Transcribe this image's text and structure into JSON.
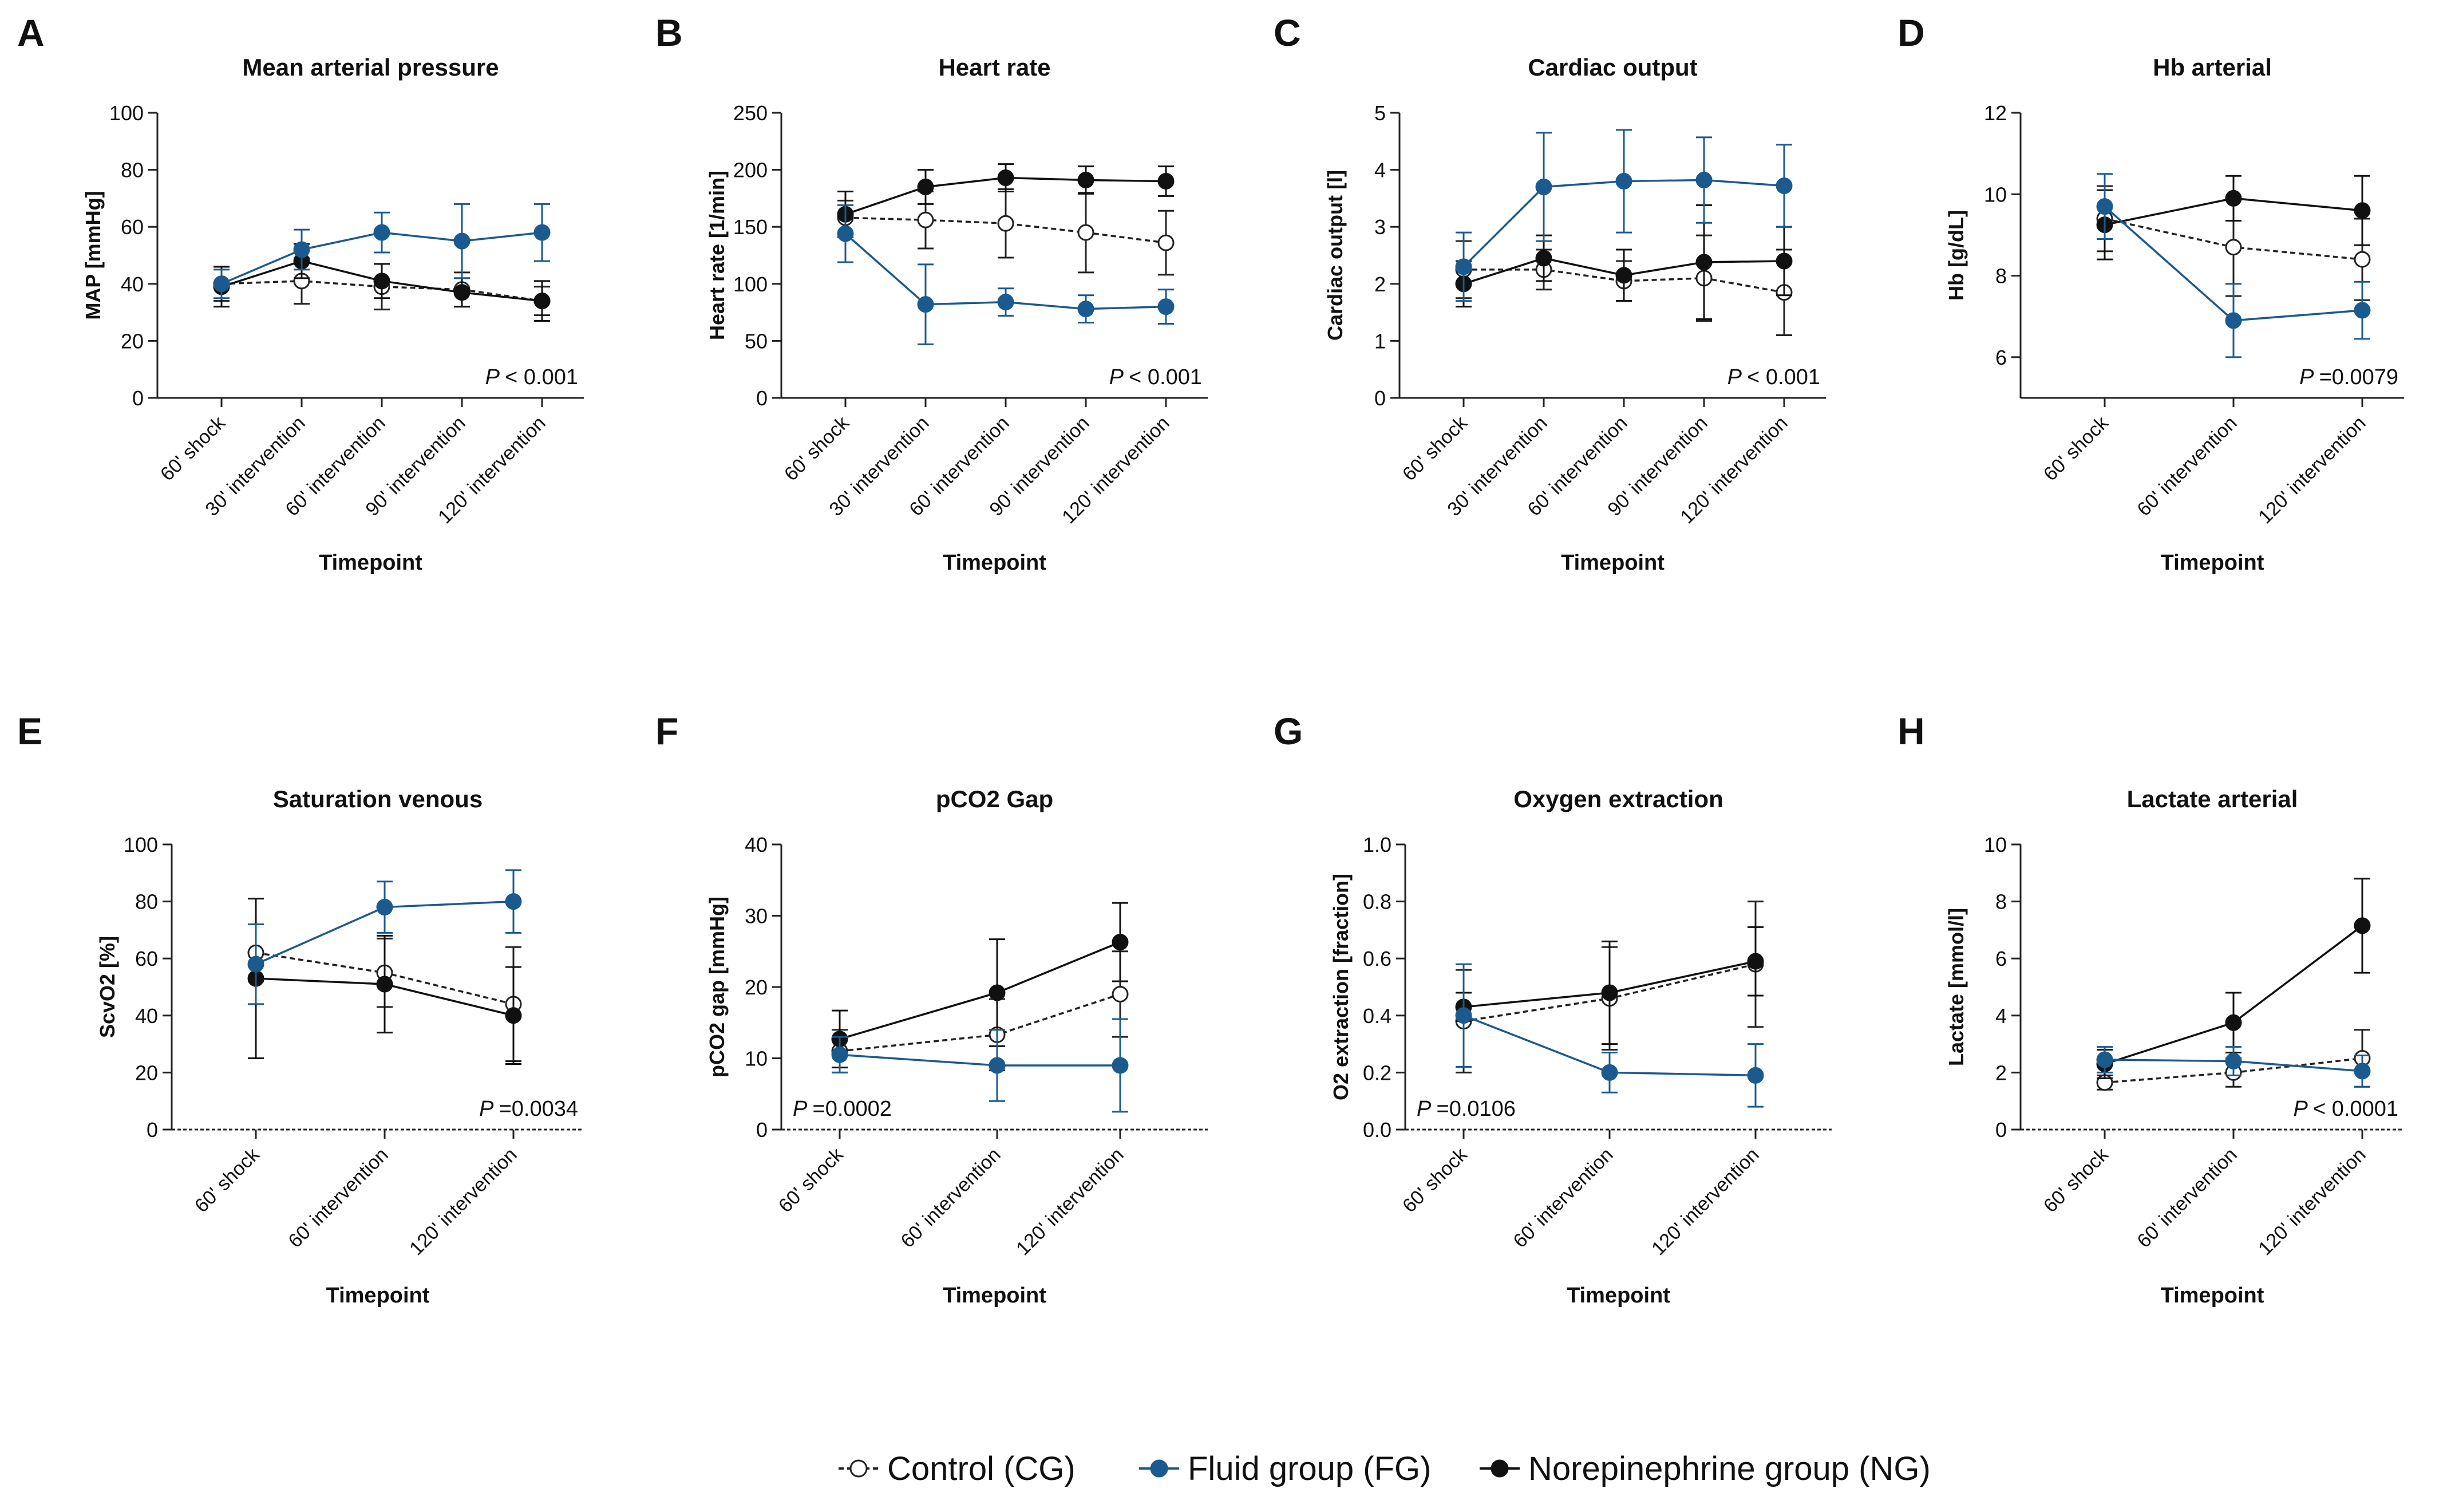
{
  "colors": {
    "control": "#222222",
    "fluid": "#1b5a8e",
    "norepinephrine": "#111111",
    "axis": "#222222"
  },
  "legend": {
    "items": [
      {
        "key": "control",
        "label": "Control (CG)"
      },
      {
        "key": "fluid",
        "label": "Fluid group (FG)"
      },
      {
        "key": "norepinephrine",
        "label": "Norepinephrine group (NG)"
      }
    ]
  },
  "chart_data": [
    {
      "panel": "A",
      "type": "line",
      "title": "Mean arterial pressure",
      "xlabel": "Timepoint",
      "ylabel": "MAP [mmHg]",
      "categories": [
        "60' shock",
        "30' intervention",
        "60' intervention",
        "90' intervention",
        "120' intervention"
      ],
      "ylim": [
        0,
        100
      ],
      "yticks": [
        "0",
        "20",
        "40",
        "60",
        "80",
        "100"
      ],
      "pvalue": "< 0.001",
      "p_position": "bottom-right",
      "series": [
        {
          "key": "control",
          "name": "Control (CG)",
          "values": [
            40,
            41,
            39,
            38,
            34
          ],
          "err": [
            6,
            8,
            8,
            6,
            5
          ]
        },
        {
          "key": "fluid",
          "name": "Fluid group (FG)",
          "values": [
            40,
            52,
            58,
            55,
            58
          ],
          "err": [
            5,
            7,
            7,
            13,
            10
          ]
        },
        {
          "key": "norepinephrine",
          "name": "Norepinephrine group (NG)",
          "values": [
            39,
            48,
            41,
            37,
            34
          ],
          "err": [
            7,
            6,
            6,
            5,
            7
          ]
        }
      ]
    },
    {
      "panel": "B",
      "type": "line",
      "title": "Heart rate",
      "xlabel": "Timepoint",
      "ylabel": "Heart rate [1/min]",
      "categories": [
        "60' shock",
        "30' intervention",
        "60' intervention",
        "90' intervention",
        "120' intervention"
      ],
      "ylim": [
        0,
        250
      ],
      "yticks": [
        "0",
        "50",
        "100",
        "150",
        "200",
        "250"
      ],
      "pvalue": "< 0.001",
      "p_position": "bottom-right",
      "series": [
        {
          "key": "control",
          "name": "Control (CG)",
          "values": [
            158,
            156,
            153,
            145,
            136
          ],
          "err": [
            15,
            25,
            30,
            35,
            28
          ]
        },
        {
          "key": "fluid",
          "name": "Fluid group (FG)",
          "values": [
            144,
            82,
            84,
            78,
            80
          ],
          "err": [
            25,
            35,
            12,
            12,
            15
          ]
        },
        {
          "key": "norepinephrine",
          "name": "Norepinephrine group (NG)",
          "values": [
            161,
            185,
            193,
            191,
            190
          ],
          "err": [
            20,
            15,
            12,
            12,
            13
          ]
        }
      ]
    },
    {
      "panel": "C",
      "type": "line",
      "title": "Cardiac output",
      "xlabel": "Timepoint",
      "ylabel": "Cardiac output [l]",
      "categories": [
        "60' shock",
        "30' intervention",
        "60' intervention",
        "90' intervention",
        "120' intervention"
      ],
      "ylim": [
        0,
        5
      ],
      "yticks": [
        "0",
        "1",
        "2",
        "3",
        "4",
        "5"
      ],
      "pvalue": "< 0.001",
      "p_position": "bottom-right",
      "series": [
        {
          "key": "control",
          "name": "Control (CG)",
          "values": [
            2.25,
            2.25,
            2.05,
            2.1,
            1.85
          ],
          "err": [
            0.5,
            0.35,
            0.35,
            0.75,
            0.75
          ]
        },
        {
          "key": "fluid",
          "name": "Fluid group (FG)",
          "values": [
            2.3,
            3.7,
            3.8,
            3.82,
            3.72
          ],
          "err": [
            0.6,
            0.95,
            0.9,
            0.75,
            0.72
          ]
        },
        {
          "key": "norepinephrine",
          "name": "Norepinephrine group (NG)",
          "values": [
            2.0,
            2.45,
            2.15,
            2.38,
            2.4
          ],
          "err": [
            0.4,
            0.4,
            0.45,
            1.0,
            0.6
          ]
        }
      ]
    },
    {
      "panel": "D",
      "type": "line",
      "title": "Hb arterial",
      "xlabel": "Timepoint",
      "ylabel": "Hb [g/dL]",
      "categories": [
        "60' shock",
        "60' intervention",
        "120' intervention"
      ],
      "ylim": [
        5,
        12
      ],
      "yticks": [
        "6",
        "8",
        "10",
        "12"
      ],
      "pvalue": "=0.0079",
      "p_position": "bottom-right",
      "series": [
        {
          "key": "control",
          "name": "Control (CG)",
          "values": [
            9.4,
            8.7,
            8.4
          ],
          "err": [
            0.8,
            1.2,
            1.0
          ]
        },
        {
          "key": "fluid",
          "name": "Fluid group (FG)",
          "values": [
            9.7,
            6.9,
            7.15
          ],
          "err": [
            0.8,
            0.9,
            0.7
          ]
        },
        {
          "key": "norepinephrine",
          "name": "Norepinephrine group (NG)",
          "values": [
            9.25,
            9.9,
            9.6
          ],
          "err": [
            0.85,
            0.55,
            0.85
          ]
        }
      ]
    },
    {
      "panel": "E",
      "type": "line",
      "title": "Saturation venous",
      "xlabel": "Timepoint",
      "ylabel": "ScvO2 [%]",
      "categories": [
        "60' shock",
        "60' intervention",
        "120' intervention"
      ],
      "ylim": [
        0,
        100
      ],
      "yticks": [
        "0",
        "20",
        "40",
        "60",
        "80",
        "100"
      ],
      "pvalue": "=0.0034",
      "p_position": "bottom-right",
      "series": [
        {
          "key": "control",
          "name": "Control (CG)",
          "values": [
            62,
            55,
            44
          ],
          "err": [
            10,
            12,
            20
          ]
        },
        {
          "key": "fluid",
          "name": "Fluid group (FG)",
          "values": [
            58,
            78,
            80
          ],
          "err": [
            14,
            9,
            11
          ]
        },
        {
          "key": "norepinephrine",
          "name": "Norepinephrine group (NG)",
          "values": [
            53,
            51,
            40
          ],
          "err": [
            28,
            17,
            17
          ]
        }
      ]
    },
    {
      "panel": "F",
      "type": "line",
      "title": "pCO2 Gap",
      "xlabel": "Timepoint",
      "ylabel": "pCO2 gap [mmHg]",
      "categories": [
        "60' shock",
        "60' intervention",
        "120' intervention"
      ],
      "ylim": [
        0,
        40
      ],
      "yticks": [
        "0",
        "10",
        "20",
        "30",
        "40"
      ],
      "pvalue": "=0.0002",
      "p_position": "bottom-left",
      "series": [
        {
          "key": "control",
          "name": "Control (CG)",
          "values": [
            11,
            13.3,
            19
          ],
          "err": [
            3,
            5,
            6
          ]
        },
        {
          "key": "fluid",
          "name": "Fluid group (FG)",
          "values": [
            10.5,
            9,
            9
          ],
          "err": [
            2.5,
            5,
            6.5
          ]
        },
        {
          "key": "norepinephrine",
          "name": "Norepinephrine group (NG)",
          "values": [
            12.7,
            19.2,
            26.3
          ],
          "err": [
            4,
            7.5,
            5.5
          ]
        }
      ]
    },
    {
      "panel": "G",
      "type": "line",
      "title": "Oxygen extraction",
      "xlabel": "Timepoint",
      "ylabel": "O2 extraction [fraction]",
      "categories": [
        "60' shock",
        "60' intervention",
        "120' intervention"
      ],
      "ylim": [
        0,
        1.0
      ],
      "yticks": [
        "0.0",
        "0.2",
        "0.4",
        "0.6",
        "0.8",
        "1.0"
      ],
      "pvalue": "=0.0106",
      "p_position": "bottom-left",
      "series": [
        {
          "key": "control",
          "name": "Control (CG)",
          "values": [
            0.38,
            0.46,
            0.58
          ],
          "err": [
            0.18,
            0.18,
            0.22
          ]
        },
        {
          "key": "fluid",
          "name": "Fluid group (FG)",
          "values": [
            0.4,
            0.2,
            0.19
          ],
          "err": [
            0.18,
            0.07,
            0.11
          ]
        },
        {
          "key": "norepinephrine",
          "name": "Norepinephrine group (NG)",
          "values": [
            0.43,
            0.48,
            0.59
          ],
          "err": [
            0.05,
            0.18,
            0.12
          ]
        }
      ]
    },
    {
      "panel": "H",
      "type": "line",
      "title": "Lactate arterial",
      "xlabel": "Timepoint",
      "ylabel": "Lactate [mmol/l]",
      "categories": [
        "60' shock",
        "60' intervention",
        "120' intervention"
      ],
      "ylim": [
        0,
        10
      ],
      "yticks": [
        "0",
        "2",
        "4",
        "6",
        "8",
        "10"
      ],
      "pvalue": "< 0.0001",
      "p_position": "bottom-right",
      "series": [
        {
          "key": "control",
          "name": "Control (CG)",
          "values": [
            1.65,
            2.0,
            2.5
          ],
          "err": [
            0.25,
            0.5,
            1.0
          ]
        },
        {
          "key": "fluid",
          "name": "Fluid group (FG)",
          "values": [
            2.45,
            2.4,
            2.05
          ],
          "err": [
            0.45,
            0.5,
            0.55
          ]
        },
        {
          "key": "norepinephrine",
          "name": "Norepinephrine group (NG)",
          "values": [
            2.3,
            3.75,
            7.15
          ],
          "err": [
            0.5,
            1.05,
            1.65
          ]
        }
      ]
    }
  ]
}
